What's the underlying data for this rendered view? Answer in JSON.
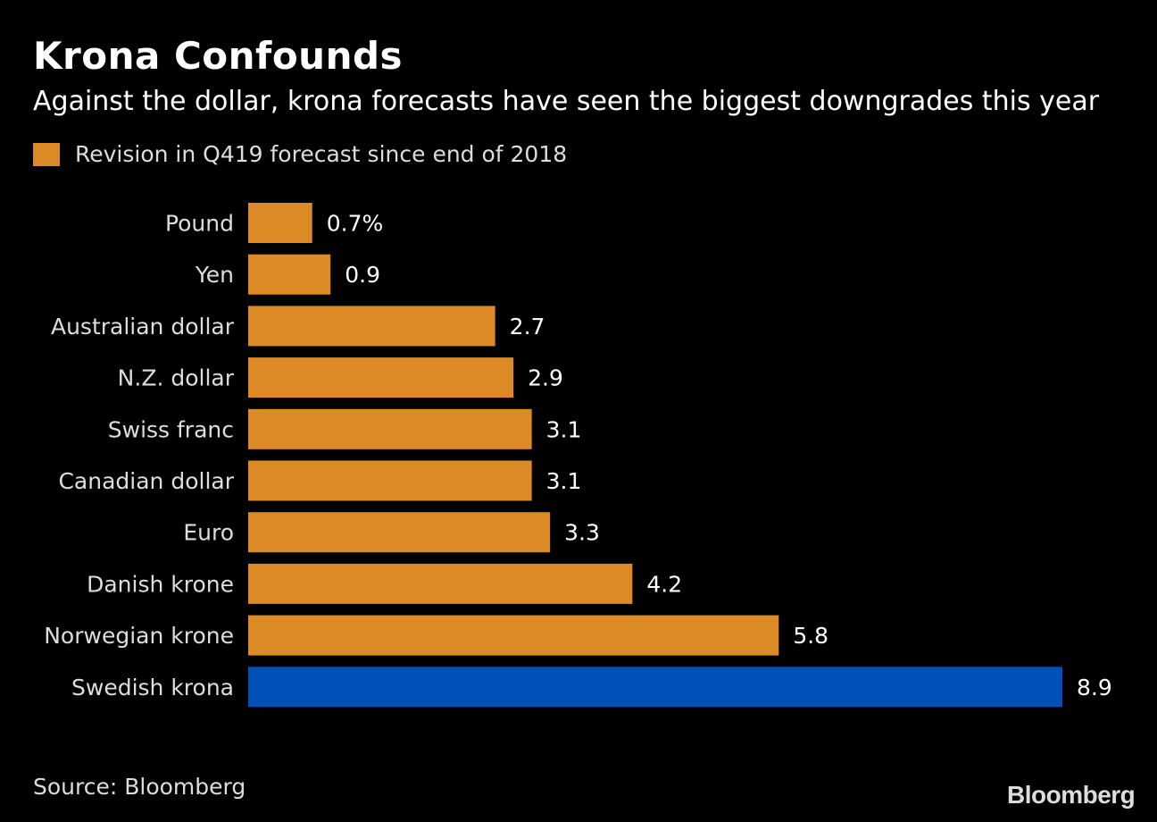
{
  "chart_data": {
    "type": "bar",
    "orientation": "horizontal",
    "title": "Krona Confounds",
    "subtitle": "Against the dollar, krona forecasts have seen the biggest downgrades this year",
    "legend": [
      {
        "name": "Revision in Q419 forecast since end of 2018",
        "color": "#db8a26"
      }
    ],
    "legend_placement": "top-left",
    "categories": [
      "Pound",
      "Yen",
      "Australian dollar",
      "N.Z. dollar",
      "Swiss franc",
      "Canadian dollar",
      "Euro",
      "Danish krone",
      "Norwegian krone",
      "Swedish krona"
    ],
    "values": [
      0.7,
      0.9,
      2.7,
      2.9,
      3.1,
      3.1,
      3.3,
      4.2,
      5.8,
      8.9
    ],
    "value_labels": [
      "0.7%",
      "0.9",
      "2.7",
      "2.9",
      "3.1",
      "3.1",
      "3.3",
      "4.2",
      "5.8",
      "8.9"
    ],
    "colors": [
      "#db8a26",
      "#db8a26",
      "#db8a26",
      "#db8a26",
      "#db8a26",
      "#db8a26",
      "#db8a26",
      "#db8a26",
      "#db8a26",
      "#0050b8"
    ],
    "xlim": [
      0,
      8.9
    ],
    "grid": false,
    "source": "Source: Bloomberg"
  },
  "branding": {
    "logo": "Bloomberg"
  }
}
